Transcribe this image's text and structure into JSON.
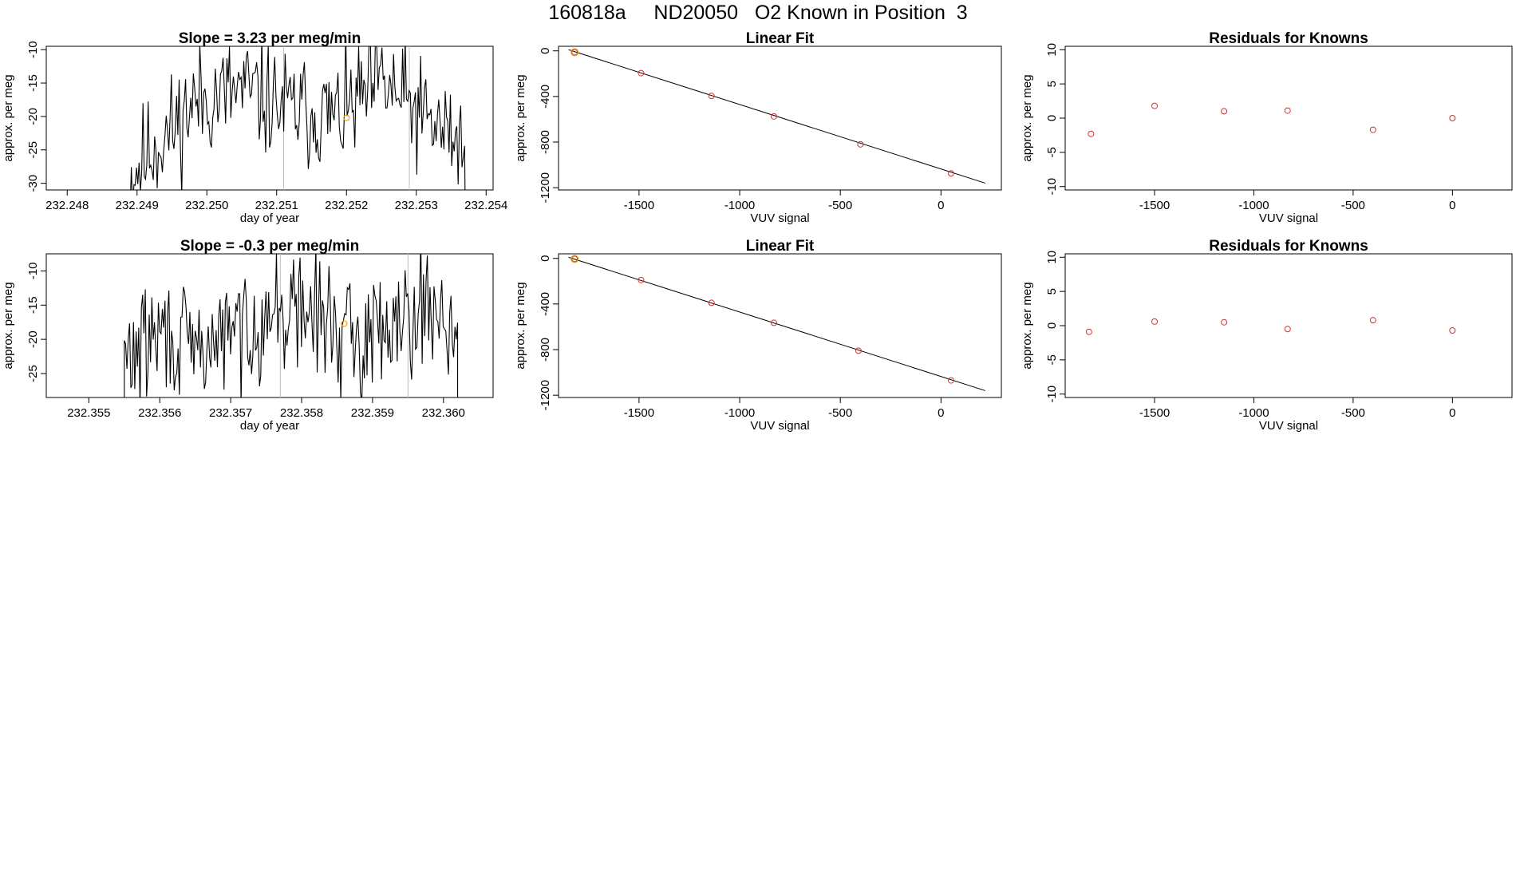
{
  "page": {
    "title": "160818a     ND20050   O2 Known in Position  3"
  },
  "colors": {
    "line": "#000000",
    "point": "#cd3333",
    "highlight": "#e8a317",
    "vline": "#bebebe",
    "frame": "#000000"
  },
  "chart_data": [
    {
      "id": "ts1",
      "type": "line",
      "title": "Slope =  3.23  per meg/min",
      "xlabel": "day of year",
      "ylabel": "approx. per meg",
      "xlim": [
        232.2477,
        232.2541
      ],
      "ylim": [
        -31.0,
        -9.5
      ],
      "xticks": [
        232.248,
        232.249,
        232.25,
        232.251,
        232.252,
        232.253,
        232.254
      ],
      "xtick_labels": [
        "232.248",
        "232.249",
        "232.250",
        "232.251",
        "232.252",
        "232.253",
        "232.254"
      ],
      "yticks": [
        -30,
        -25,
        -20,
        -15,
        -10
      ],
      "ytick_labels": [
        "-30",
        "-25",
        "-20",
        "-15",
        "-10"
      ],
      "start": 232.2489,
      "end": 232.2537,
      "step": 1.85e-05,
      "seed": 11,
      "base": [
        [
          232.2489,
          -29
        ],
        [
          232.2492,
          -25
        ],
        [
          232.2495,
          -22
        ],
        [
          232.2498,
          -18
        ],
        [
          232.2505,
          -16
        ],
        [
          232.2512,
          -19
        ],
        [
          232.2519,
          -20
        ],
        [
          232.2525,
          -15
        ],
        [
          232.2532,
          -21
        ],
        [
          232.2537,
          -24
        ]
      ],
      "vlines": [
        232.2511,
        232.2529
      ],
      "marker": {
        "x": 232.252,
        "y": -20.2
      }
    },
    {
      "id": "fit1",
      "type": "scatter",
      "title": "Linear Fit",
      "xlabel": "VUV signal",
      "ylabel": "approx. per meg",
      "xlim": [
        -1900,
        300
      ],
      "ylim": [
        -1220,
        40
      ],
      "xticks": [
        -1500,
        -1000,
        -500,
        0
      ],
      "xtick_labels": [
        "-1500",
        "-1000",
        "-500",
        "0"
      ],
      "yticks": [
        -1200,
        -800,
        -400,
        0
      ],
      "ytick_labels": [
        "-1200",
        "-800",
        "-400",
        "0"
      ],
      "points": [
        [
          -1820,
          -12
        ],
        [
          -1490,
          -195
        ],
        [
          -1140,
          -395
        ],
        [
          -830,
          -575
        ],
        [
          -400,
          -820
        ],
        [
          50,
          -1075
        ]
      ],
      "highlight_index": 0,
      "fit": [
        [
          -1850,
          10
        ],
        [
          220,
          -1160
        ]
      ]
    },
    {
      "id": "res1",
      "type": "scatter",
      "title": "Residuals for Knowns",
      "xlabel": "VUV signal",
      "ylabel": "approx. per meg",
      "xlim": [
        -1950,
        300
      ],
      "ylim": [
        -10.5,
        10.5
      ],
      "xticks": [
        -1500,
        -1000,
        -500,
        0
      ],
      "xtick_labels": [
        "-1500",
        "-1000",
        "-500",
        "0"
      ],
      "yticks": [
        -10,
        -5,
        0,
        5,
        10
      ],
      "ytick_labels": [
        "-10",
        "-5",
        "0",
        "5",
        "10"
      ],
      "points": [
        [
          -1820,
          -2.3
        ],
        [
          -1500,
          1.8
        ],
        [
          -1150,
          1.0
        ],
        [
          -830,
          1.1
        ],
        [
          -400,
          -1.7
        ],
        [
          0,
          0.0
        ]
      ]
    },
    {
      "id": "ts2",
      "type": "line",
      "title": "Slope =  -0.3  per meg/min",
      "xlabel": "day of year",
      "ylabel": "approx. per meg",
      "xlim": [
        232.3544,
        232.3607
      ],
      "ylim": [
        -28.5,
        -7.5
      ],
      "xticks": [
        232.355,
        232.356,
        232.357,
        232.358,
        232.359,
        232.36
      ],
      "xtick_labels": [
        "232.355",
        "232.356",
        "232.357",
        "232.358",
        "232.359",
        "232.360"
      ],
      "yticks": [
        -25,
        -20,
        -15,
        -10
      ],
      "ytick_labels": [
        "-25",
        "-20",
        "-15",
        "-10"
      ],
      "start": 232.3555,
      "end": 232.3602,
      "step": 1.85e-05,
      "seed": 29,
      "base": [
        [
          232.3555,
          -23
        ],
        [
          232.356,
          -19
        ],
        [
          232.3565,
          -22
        ],
        [
          232.357,
          -19
        ],
        [
          232.3577,
          -16
        ],
        [
          232.3582,
          -16
        ],
        [
          232.3588,
          -21
        ],
        [
          232.3593,
          -16
        ],
        [
          232.3598,
          -15
        ],
        [
          232.3602,
          -18
        ]
      ],
      "vlines": [
        232.3577,
        232.3595
      ],
      "marker": {
        "x": 232.3586,
        "y": -17.7
      }
    },
    {
      "id": "fit2",
      "type": "scatter",
      "title": "Linear Fit",
      "xlabel": "VUV signal",
      "ylabel": "approx. per meg",
      "xlim": [
        -1900,
        300
      ],
      "ylim": [
        -1220,
        40
      ],
      "xticks": [
        -1500,
        -1000,
        -500,
        0
      ],
      "xtick_labels": [
        "-1500",
        "-1000",
        "-500",
        "0"
      ],
      "yticks": [
        -1200,
        -800,
        -400,
        0
      ],
      "ytick_labels": [
        "-1200",
        "-800",
        "-400",
        "0"
      ],
      "points": [
        [
          -1820,
          -5
        ],
        [
          -1490,
          -190
        ],
        [
          -1140,
          -390
        ],
        [
          -830,
          -565
        ],
        [
          -410,
          -810
        ],
        [
          50,
          -1070
        ]
      ],
      "highlight_index": 0,
      "fit": [
        [
          -1850,
          10
        ],
        [
          220,
          -1160
        ]
      ]
    },
    {
      "id": "res2",
      "type": "scatter",
      "title": "Residuals for Knowns",
      "xlabel": "VUV signal",
      "ylabel": "approx. per meg",
      "xlim": [
        -1950,
        300
      ],
      "ylim": [
        -10.5,
        10.5
      ],
      "xticks": [
        -1500,
        -1000,
        -500,
        0
      ],
      "xtick_labels": [
        "-1500",
        "-1000",
        "-500",
        "0"
      ],
      "yticks": [
        -10,
        -5,
        0,
        5,
        10
      ],
      "ytick_labels": [
        "-10",
        "-5",
        "0",
        "5",
        "10"
      ],
      "points": [
        [
          -1830,
          -0.9
        ],
        [
          -1500,
          0.6
        ],
        [
          -1150,
          0.5
        ],
        [
          -830,
          -0.5
        ],
        [
          -400,
          0.8
        ],
        [
          0,
          -0.7
        ]
      ]
    }
  ]
}
